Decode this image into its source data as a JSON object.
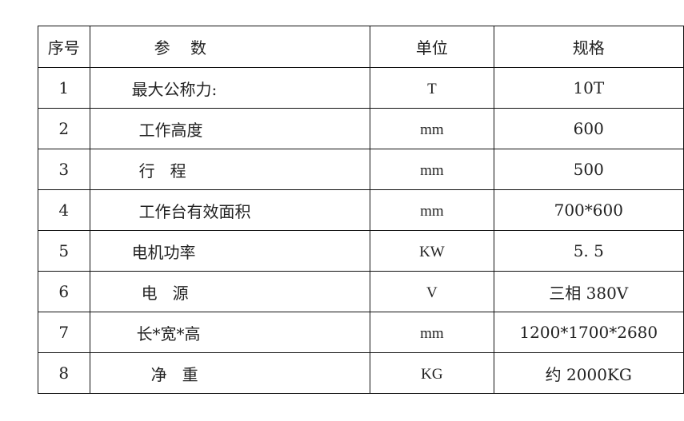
{
  "table": {
    "headers": [
      "序号",
      "参    数",
      "单位",
      "规格"
    ],
    "rows": [
      {
        "no": "1",
        "param": "最大公称力:",
        "unit": "T",
        "spec": "10T"
      },
      {
        "no": "2",
        "param": "工作高度",
        "unit": "mm",
        "spec": "600"
      },
      {
        "no": "3",
        "param": "行   程",
        "unit": "mm",
        "spec": "500"
      },
      {
        "no": "4",
        "param": "工作台有效面积",
        "unit": "mm",
        "spec": "700*600"
      },
      {
        "no": "5",
        "param": "电机功率",
        "unit": "KW",
        "spec": "5. 5"
      },
      {
        "no": "6",
        "param": "电   源",
        "unit": "V",
        "spec": "三相 380V"
      },
      {
        "no": "7",
        "param": "长*宽*高",
        "unit": "mm",
        "spec": "1200*1700*2680"
      },
      {
        "no": "8",
        "param": "净   重",
        "unit": "KG",
        "spec": "约 2000KG"
      }
    ]
  }
}
